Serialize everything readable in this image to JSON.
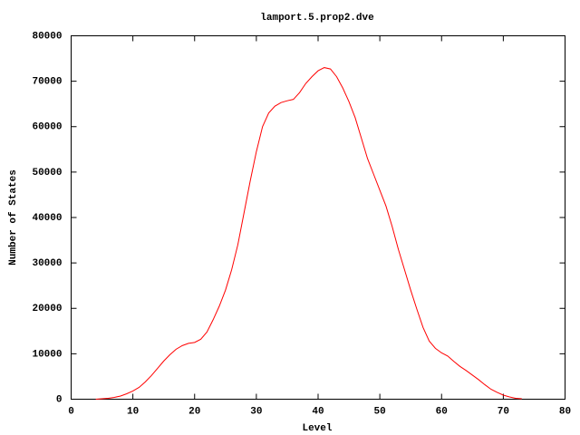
{
  "chart_data": {
    "type": "line",
    "title": "lamport.5.prop2.dve",
    "xlabel": "Level",
    "ylabel": "Number of States",
    "x": [
      4,
      5,
      6,
      7,
      8,
      9,
      10,
      11,
      12,
      13,
      14,
      15,
      16,
      17,
      18,
      19,
      20,
      21,
      22,
      23,
      24,
      25,
      26,
      27,
      28,
      29,
      30,
      31,
      32,
      33,
      34,
      35,
      36,
      37,
      38,
      39,
      40,
      41,
      42,
      43,
      44,
      45,
      46,
      47,
      48,
      49,
      50,
      51,
      52,
      53,
      54,
      55,
      56,
      57,
      58,
      59,
      60,
      61,
      62,
      63,
      64,
      65,
      66,
      67,
      68,
      69,
      70,
      71,
      72,
      73
    ],
    "series": [
      {
        "color": "#ff0000",
        "values": [
          0,
          100,
          200,
          400,
          700,
          1200,
          1800,
          2600,
          3800,
          5200,
          6800,
          8400,
          9800,
          11000,
          11800,
          12300,
          12500,
          13200,
          14800,
          17500,
          20500,
          24000,
          28500,
          34000,
          41000,
          48000,
          54500,
          60000,
          63000,
          64500,
          65300,
          65700,
          66000,
          67500,
          69500,
          71000,
          72300,
          73000,
          72700,
          71000,
          68500,
          65500,
          62000,
          57500,
          53000,
          49500,
          46000,
          42500,
          38000,
          33000,
          28500,
          24000,
          19800,
          15800,
          12800,
          11200,
          10200,
          9500,
          8300,
          7200,
          6300,
          5300,
          4300,
          3200,
          2200,
          1500,
          900,
          500,
          200,
          100
        ]
      }
    ],
    "xlim": [
      0,
      80
    ],
    "xticks": [
      0,
      10,
      20,
      30,
      40,
      50,
      60,
      70,
      80
    ],
    "ylim": [
      0,
      80000
    ],
    "yticks": [
      0,
      10000,
      20000,
      30000,
      40000,
      50000,
      60000,
      70000,
      80000
    ],
    "grid": false
  }
}
